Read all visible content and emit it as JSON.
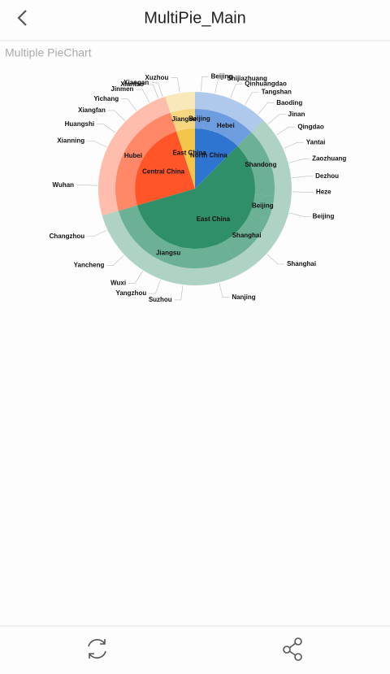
{
  "header": {
    "title": "MultiPie_Main"
  },
  "chart_data": {
    "type": "sunburst",
    "title": "Multiple PieChart",
    "regions": [
      {
        "name": "North China",
        "value": 12.5,
        "color": "#2f74d0",
        "children": [
          {
            "name": "Beijing",
            "value": 2,
            "children": [
              {
                "name": "Beijing",
                "value": 2
              }
            ]
          },
          {
            "name": "Hebei",
            "value": 10.5,
            "children": [
              {
                "name": "Shijiazhuang",
                "value": 2.625
              },
              {
                "name": "Qinhuangdao",
                "value": 2.625
              },
              {
                "name": "Tangshan",
                "value": 2.625
              },
              {
                "name": "Baoding",
                "value": 2.625
              }
            ]
          }
        ]
      },
      {
        "name": "East China",
        "value": 58,
        "color": "#2e8f68",
        "children": [
          {
            "name": "Shandong",
            "value": 14,
            "children": [
              {
                "name": "Jinan",
                "value": 2
              },
              {
                "name": "Qingdao",
                "value": 2.5
              },
              {
                "name": "Yantai",
                "value": 2.5
              },
              {
                "name": "Zaozhuang",
                "value": 2.5
              },
              {
                "name": "Dezhou",
                "value": 2.5
              },
              {
                "name": "Heze",
                "value": 2
              }
            ]
          },
          {
            "name": "Beijing",
            "value": 5,
            "children": [
              {
                "name": "Beijing",
                "value": 5
              }
            ]
          },
          {
            "name": "Shanghai",
            "value": 10.5,
            "children": [
              {
                "name": "Shanghai",
                "value": 10.5
              }
            ]
          },
          {
            "name": "Jiangsu",
            "value": 28.5,
            "children": [
              {
                "name": "Nanjing",
                "value": 8
              },
              {
                "name": "Suzhou",
                "value": 4
              },
              {
                "name": "Yangzhou",
                "value": 3.5
              },
              {
                "name": "Wuxi",
                "value": 3
              },
              {
                "name": "Yancheng",
                "value": 5
              },
              {
                "name": "Changzhou",
                "value": 5
              }
            ]
          }
        ]
      },
      {
        "name": "Central China",
        "value": 24.5,
        "color": "#ff5529",
        "children": [
          {
            "name": "Hubei",
            "value": 24.5,
            "children": [
              {
                "name": "Wuhan",
                "value": 10
              },
              {
                "name": "Xianning",
                "value": 3
              },
              {
                "name": "Huangshi",
                "value": 2.5
              },
              {
                "name": "Xiangfan",
                "value": 2.5
              },
              {
                "name": "Yichang",
                "value": 2.5
              },
              {
                "name": "Jinmen",
                "value": 2.5
              },
              {
                "name": "Xiantao",
                "value": 0.75
              },
              {
                "name": "Xiaogan",
                "value": 0.75
              }
            ]
          }
        ]
      },
      {
        "name": "East China",
        "value": 5,
        "color": "#f3c54a",
        "children": [
          {
            "name": "Jiangsu",
            "value": 5,
            "children": [
              {
                "name": "Xuzhou",
                "value": 5
              }
            ]
          }
        ]
      }
    ]
  }
}
